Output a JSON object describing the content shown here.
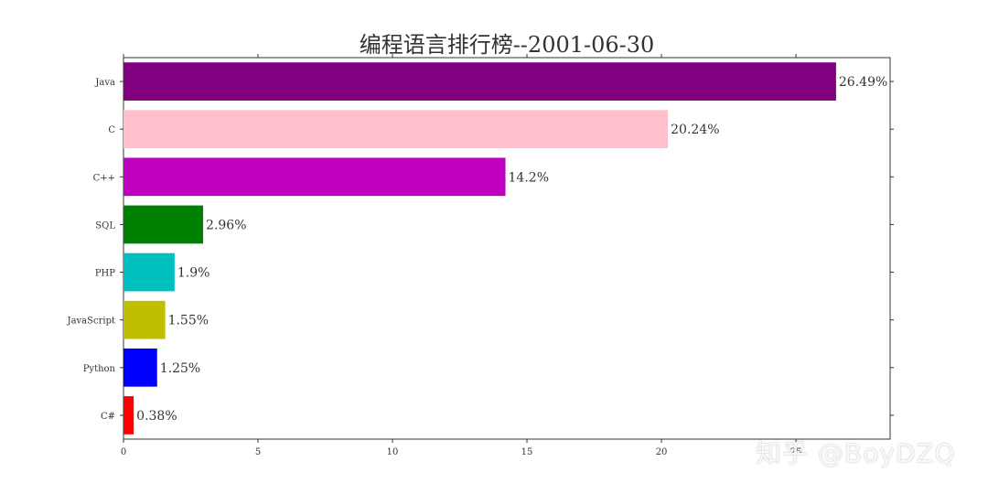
{
  "chart_data": {
    "type": "bar",
    "orientation": "horizontal",
    "title": "编程语言排行榜--2001-06-30",
    "xlabel": "",
    "ylabel": "",
    "xlim": [
      0,
      28.5
    ],
    "xticks": [
      0,
      5,
      10,
      15,
      20,
      25
    ],
    "grid": false,
    "categories": [
      "Java",
      "C",
      "C++",
      "SQL",
      "PHP",
      "JavaScript",
      "Python",
      "C#"
    ],
    "values": [
      26.49,
      20.24,
      14.2,
      2.96,
      1.9,
      1.55,
      1.25,
      0.38
    ],
    "value_labels": [
      "26.49%",
      "20.24%",
      "14.2%",
      "2.96%",
      "1.9%",
      "1.55%",
      "1.25%",
      "0.38%"
    ],
    "colors": [
      "#800080",
      "#ffc0cb",
      "#bf00bf",
      "#008000",
      "#00bfbf",
      "#bfbf00",
      "#0000ff",
      "#ff0000"
    ]
  },
  "watermark": "知乎 @BoyDZQ"
}
